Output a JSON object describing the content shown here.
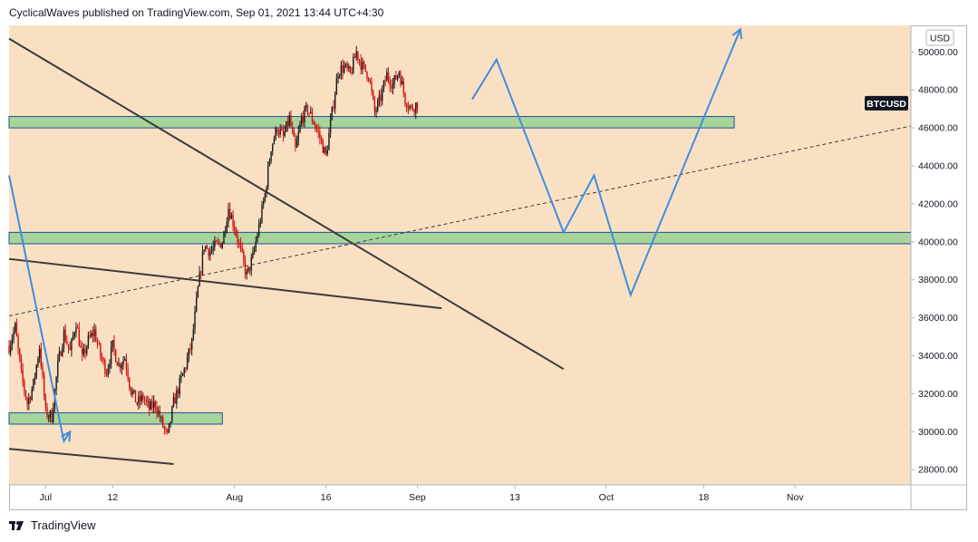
{
  "header": {
    "publish_line": "CyclicalWaves published on TradingView.com, Sep 01, 2021 13:44 UTC+4:30"
  },
  "footer": {
    "logo_icon": "tradingview-logo-icon",
    "brand": "TradingView"
  },
  "colors": {
    "background": "#fae0c3",
    "zone_fill": "#a7d49a",
    "zone_border": "#1e4f9c",
    "projection": "#3e8ddf",
    "trendline": "#3a3a3a",
    "candle_up": "#1a1a1a",
    "candle_down": "#d10f0f"
  },
  "chart_data": {
    "type": "candlestick",
    "symbol": "BTCUSD",
    "currency": "USD",
    "x_tick_labels": [
      "Jul",
      "12",
      "Aug",
      "16",
      "Sep",
      "13",
      "Oct",
      "18",
      "Nov"
    ],
    "y_tick_labels": [
      "28000.00",
      "30000.00",
      "32000.00",
      "34000.00",
      "36000.00",
      "38000.00",
      "40000.00",
      "42000.00",
      "44000.00",
      "46000.00",
      "48000.00",
      "50000.00"
    ],
    "y_ticks": [
      28000,
      30000,
      32000,
      34000,
      36000,
      38000,
      40000,
      42000,
      44000,
      46000,
      48000,
      50000
    ],
    "ylim": [
      27200,
      51400
    ],
    "x_range_days": [
      0,
      148
    ],
    "x_tick_days": [
      6,
      17,
      37,
      52,
      67,
      83,
      98,
      114,
      129
    ],
    "last_price_label": "BTCUSD",
    "last_price": 47300,
    "price_anchors": [
      [
        0,
        34500
      ],
      [
        1,
        35500
      ],
      [
        2,
        33000
      ],
      [
        3,
        31500
      ],
      [
        4,
        32500
      ],
      [
        5,
        34500
      ],
      [
        6,
        31000
      ],
      [
        7,
        30800
      ],
      [
        8,
        33500
      ],
      [
        9,
        35200
      ],
      [
        10,
        34200
      ],
      [
        11,
        35800
      ],
      [
        12,
        33800
      ],
      [
        13,
        34800
      ],
      [
        14,
        35300
      ],
      [
        15,
        34000
      ],
      [
        16,
        33200
      ],
      [
        17,
        34500
      ],
      [
        18,
        33500
      ],
      [
        19,
        33900
      ],
      [
        20,
        32200
      ],
      [
        21,
        31500
      ],
      [
        22,
        31800
      ],
      [
        23,
        31200
      ],
      [
        24,
        31500
      ],
      [
        25,
        30500
      ],
      [
        26,
        29700
      ],
      [
        27,
        31500
      ],
      [
        28,
        32500
      ],
      [
        29,
        33500
      ],
      [
        30,
        34700
      ],
      [
        31,
        37500
      ],
      [
        32,
        39800
      ],
      [
        33,
        39500
      ],
      [
        34,
        39800
      ],
      [
        35,
        40000
      ],
      [
        36,
        41800
      ],
      [
        37,
        40800
      ],
      [
        38,
        39500
      ],
      [
        39,
        38200
      ],
      [
        40,
        39200
      ],
      [
        41,
        40800
      ],
      [
        42,
        42500
      ],
      [
        43,
        45000
      ],
      [
        44,
        46000
      ],
      [
        45,
        45500
      ],
      [
        46,
        46500
      ],
      [
        47,
        44800
      ],
      [
        48,
        46500
      ],
      [
        49,
        47000
      ],
      [
        50,
        46300
      ],
      [
        51,
        45500
      ],
      [
        52,
        44500
      ],
      [
        53,
        46800
      ],
      [
        54,
        49000
      ],
      [
        55,
        49200
      ],
      [
        56,
        48800
      ],
      [
        57,
        50000
      ],
      [
        58,
        49200
      ],
      [
        59,
        48800
      ],
      [
        60,
        46800
      ],
      [
        61,
        47600
      ],
      [
        62,
        48800
      ],
      [
        63,
        48300
      ],
      [
        64,
        49000
      ],
      [
        65,
        47500
      ],
      [
        66,
        47000
      ],
      [
        67,
        47300
      ]
    ],
    "support_zones": [
      {
        "from": 46000,
        "to": 46600,
        "x_end_day": 119
      },
      {
        "from": 39900,
        "to": 40500,
        "x_end_day": 148
      },
      {
        "from": 30400,
        "to": 31000,
        "x_end_day": 35
      }
    ],
    "trendlines": [
      {
        "style": "solid",
        "points": [
          [
            0,
            50700
          ],
          [
            91,
            33300
          ]
        ]
      },
      {
        "style": "solid",
        "points": [
          [
            0,
            39100
          ],
          [
            71,
            36500
          ]
        ]
      },
      {
        "style": "solid",
        "points": [
          [
            0,
            29100
          ],
          [
            27,
            28300
          ]
        ]
      },
      {
        "style": "dashed",
        "points": [
          [
            0,
            36100
          ],
          [
            148,
            46100
          ]
        ]
      }
    ],
    "projection_paths": [
      [
        [
          0,
          43500
        ],
        [
          9,
          29500
        ],
        [
          10,
          30000
        ]
      ],
      [
        [
          76,
          47500
        ],
        [
          80,
          49600
        ],
        [
          91,
          40500
        ],
        [
          96,
          43500
        ],
        [
          102,
          37200
        ],
        [
          120,
          51200
        ]
      ]
    ],
    "projection_arrowheads": [
      [
        10,
        30000
      ],
      [
        120,
        51200
      ]
    ]
  }
}
